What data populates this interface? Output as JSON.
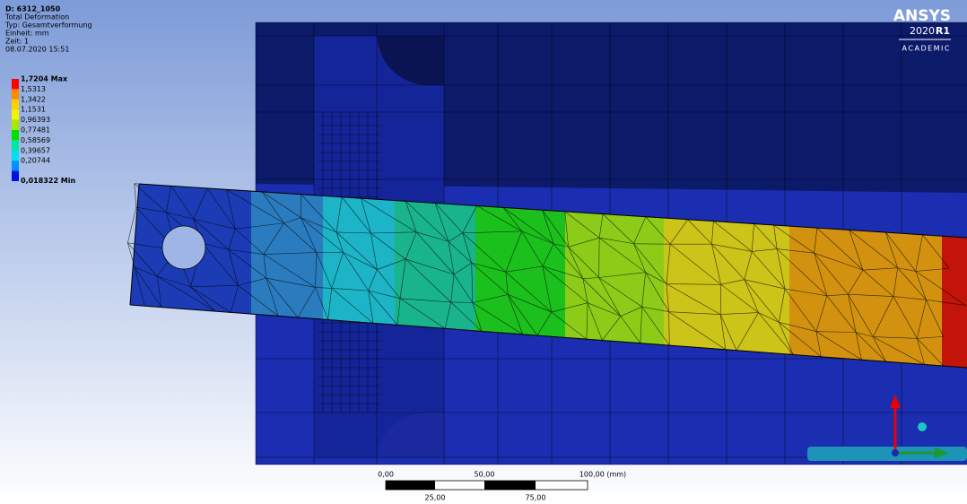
{
  "header": {
    "lines": [
      "D: 6312_1050",
      "Total Deformation",
      "Typ: Gesamtverformung",
      "Einheit: mm",
      "Zeit: 1",
      "08.07.2020 15:51"
    ]
  },
  "legend": {
    "labels": [
      "1,7204 Max",
      "1,5313",
      "1,3422",
      "1,1531",
      "0,96393",
      "0,77481",
      "0,58569",
      "0,39657",
      "0,20744",
      "0,018322 Min"
    ]
  },
  "logo": {
    "brand": "ANSYS",
    "year": "2020",
    "release": "R1",
    "edition": "ACADEMIC"
  },
  "scale_bar": {
    "top": [
      "0,00",
      "50,00",
      "100,00 (mm)"
    ],
    "bottom": [
      "25,00",
      "75,00"
    ]
  }
}
